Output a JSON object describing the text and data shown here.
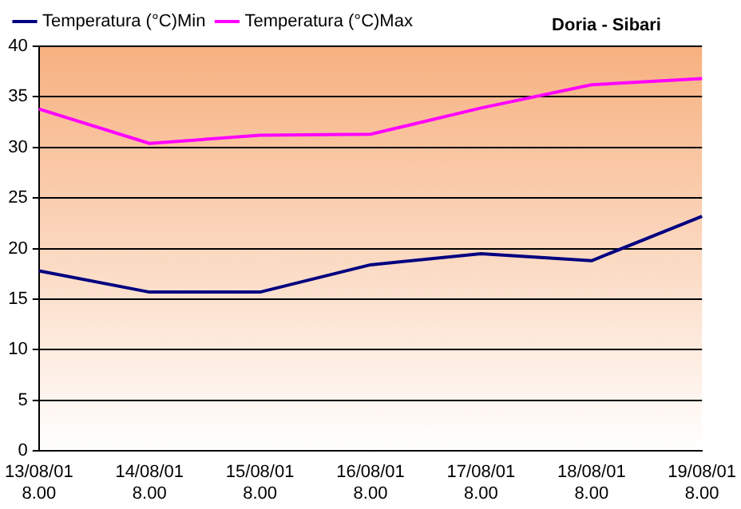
{
  "chart_data": {
    "type": "line",
    "title": "Doria - Sibari",
    "categories": [
      "13/08/01 8.00",
      "14/08/01 8.00",
      "15/08/01 8.00",
      "16/08/01 8.00",
      "17/08/01 8.00",
      "18/08/01 8.00",
      "19/08/01 8.00"
    ],
    "series": [
      {
        "name": "Temperatura (°C)Min",
        "color": "#000080",
        "values": [
          17.8,
          15.7,
          15.7,
          18.4,
          19.5,
          18.8,
          23.2
        ]
      },
      {
        "name": "Temperatura (°C)Max",
        "color": "#ff00ff",
        "values": [
          33.8,
          30.4,
          31.2,
          31.3,
          33.9,
          36.2,
          36.8
        ]
      }
    ],
    "ylim": [
      0,
      40
    ],
    "yticks": [
      0,
      5,
      10,
      15,
      20,
      25,
      30,
      35,
      40
    ],
    "grid": "y",
    "legend": "top left",
    "marker": "none",
    "line_style": "solid"
  }
}
